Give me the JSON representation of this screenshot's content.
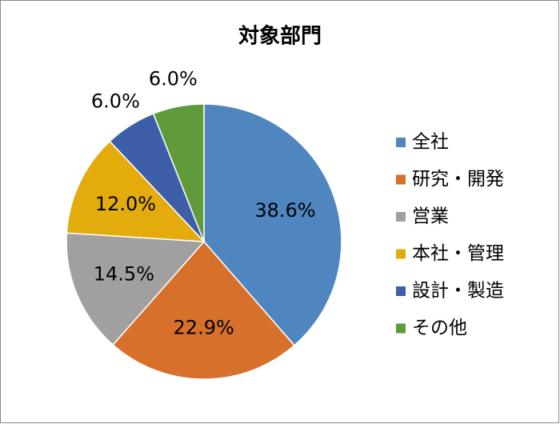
{
  "chart_data": {
    "type": "pie",
    "title": "対象部門",
    "categories": [
      "全社",
      "研究・開発",
      "営業",
      "本社・管理",
      "設計・製造",
      "その他"
    ],
    "values": [
      38.6,
      22.9,
      14.5,
      12.0,
      6.0,
      6.0
    ],
    "value_labels": [
      "38.6%",
      "22.9%",
      "14.5%",
      "12.0%",
      "6.0%",
      "6.0%"
    ],
    "colors": [
      "#4f86c0",
      "#d7702b",
      "#a0a0a0",
      "#e3ab0c",
      "#3d5fa9",
      "#5f9a3b"
    ]
  }
}
